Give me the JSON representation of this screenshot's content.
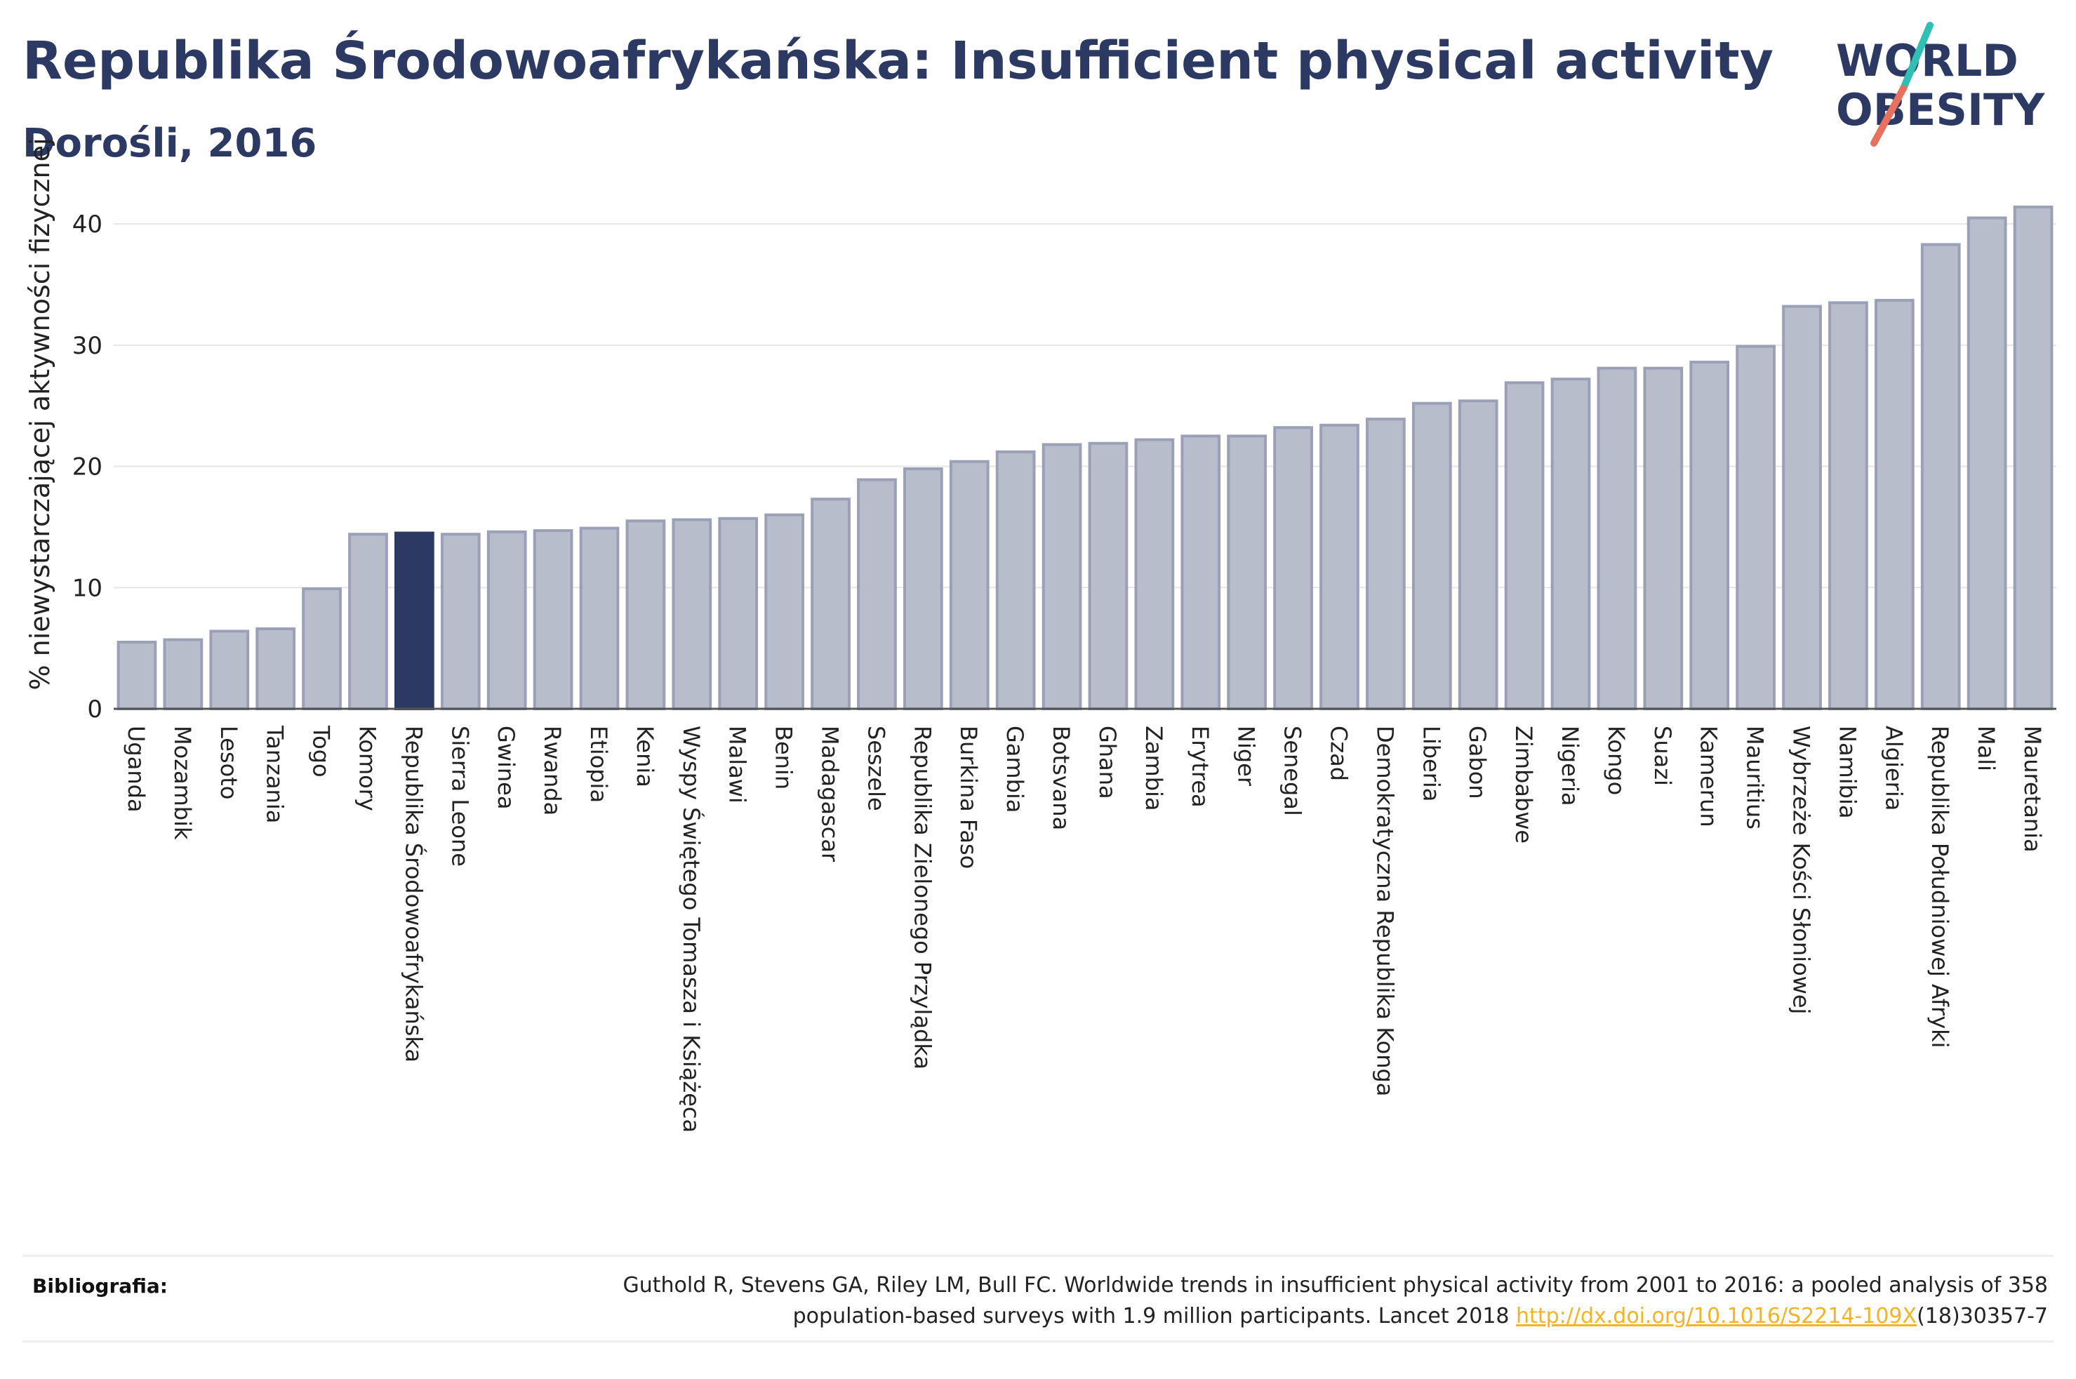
{
  "title": "Republika Środowoafrykańska: Insufficient physical activity",
  "subtitle": "Dorośli, 2016",
  "logo": {
    "line1": "WORLD",
    "line2": "OBESITY",
    "accent_teal": "#2fbfb4",
    "accent_coral": "#e8705f",
    "color": "#2c3a63"
  },
  "chart_data": {
    "type": "bar",
    "title": "Republika Środowoafrykańska: Insufficient physical activity",
    "subtitle": "Dorośli, 2016",
    "xlabel": "",
    "ylabel": "% niewystarczającej aktywności fizycznej",
    "ylim": [
      0,
      44
    ],
    "yticks": [
      0,
      10,
      20,
      30,
      40
    ],
    "grid": true,
    "highlight": "Republika Środowoafrykańska",
    "colors": {
      "bar": "#b8bdcc",
      "bar_edge": "#9aa0b6",
      "highlight": "#2c3a63",
      "grid": "#e6e6e6"
    },
    "categories": [
      "Uganda",
      "Mozambik",
      "Lesoto",
      "Tanzania",
      "Togo",
      "Komory",
      "Republika Środowoafrykańska",
      "Sierra Leone",
      "Gwinea",
      "Rwanda",
      "Etiopia",
      "Kenia",
      "Wyspy Świętego Tomasza i Książęca",
      "Malawi",
      "Benin",
      "Madagascar",
      "Seszele",
      "Republika Zielonego Przylądka",
      "Burkina Faso",
      "Gambia",
      "Botsvana",
      "Ghana",
      "Zambia",
      "Erytrea",
      "Niger",
      "Senegal",
      "Czad",
      "Demokratyczna Republika Konga",
      "Liberia",
      "Gabon",
      "Zimbabwe",
      "Nigeria",
      "Kongo",
      "Suazi",
      "Kamerun",
      "Mauritius",
      "Wybrzeże Kości Słoniowej",
      "Namibia",
      "Algieria",
      "Republika Południowej Afryki",
      "Mali",
      "Mauretania"
    ],
    "values": [
      5.5,
      5.7,
      6.4,
      6.6,
      9.9,
      14.4,
      14.5,
      14.4,
      14.6,
      14.7,
      14.9,
      15.5,
      15.6,
      15.7,
      16.0,
      17.3,
      18.9,
      19.8,
      20.4,
      21.2,
      21.8,
      21.9,
      22.2,
      22.5,
      22.5,
      23.2,
      23.4,
      23.9,
      25.2,
      25.4,
      26.9,
      27.2,
      28.1,
      28.1,
      28.6,
      29.9,
      33.2,
      33.5,
      33.7,
      38.3,
      40.5,
      41.4
    ]
  },
  "bibliography": {
    "label": "Bibliografia:",
    "line1": "Guthold R, Stevens GA, Riley LM, Bull FC. Worldwide trends in insufficient physical activity from 2001 to 2016: a pooled analysis of 358",
    "line2_pre": "population-based surveys with 1.9 million participants. Lancet 2018 ",
    "link_text": "http://dx.doi.org/10.1016/S2214-109X",
    "line2_post": "(18)30357-7"
  }
}
